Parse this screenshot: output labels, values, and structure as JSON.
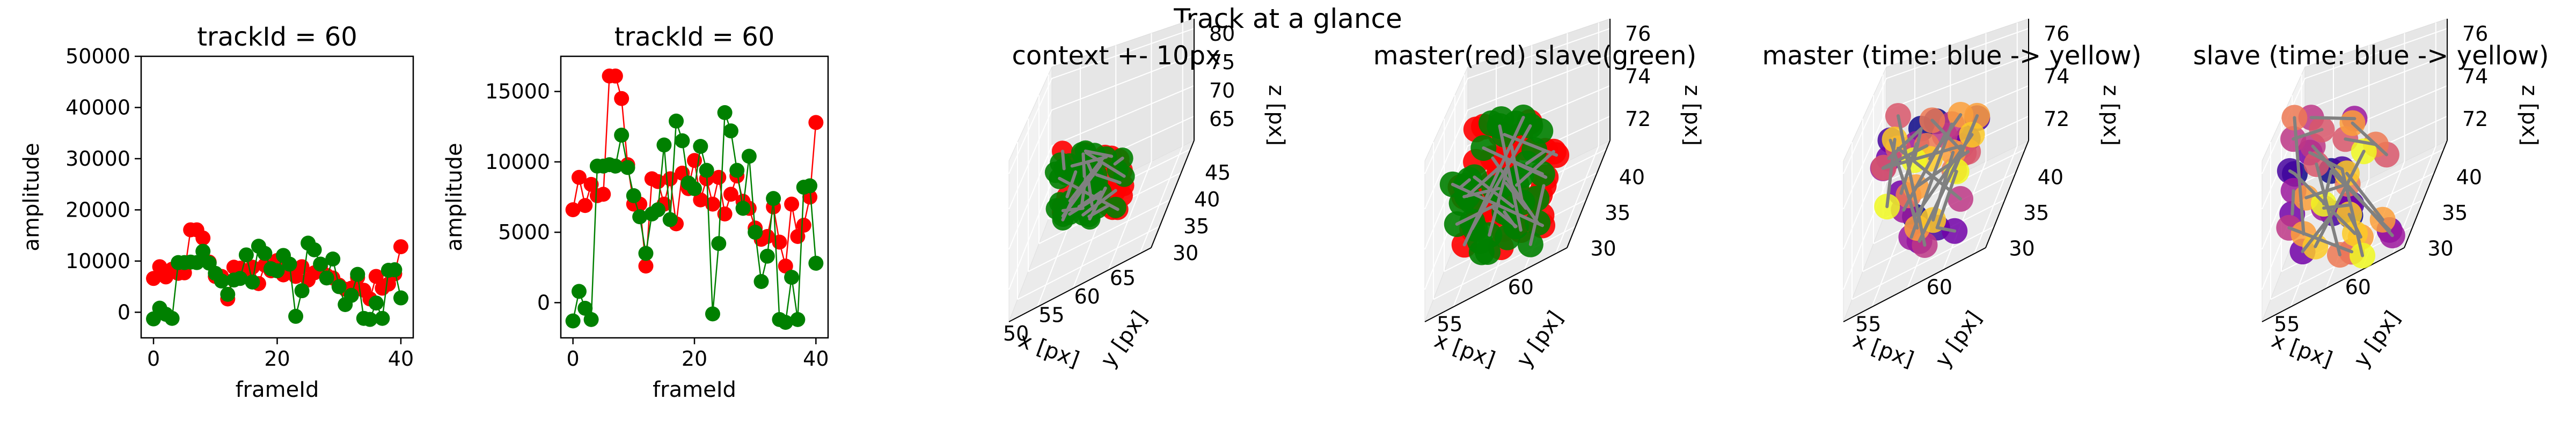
{
  "suptitle": "Track at a glance",
  "colors": {
    "master": "#ff0000",
    "slave": "#008000",
    "link": "#808080",
    "pane_left": "#f2f2f2",
    "pane_right": "#e6e6e6",
    "pane_floor": "#ebebeb"
  },
  "chart_data": [
    {
      "type": "scatter",
      "title": "trackId = 60",
      "xlabel": "frameId",
      "ylabel": "amplitude",
      "xlim": [
        -2,
        42
      ],
      "ylim": [
        -5000,
        50000
      ],
      "xticks": [
        0,
        20,
        40
      ],
      "yticks": [
        0,
        10000,
        20000,
        30000,
        40000,
        50000
      ],
      "ytick_labels": [
        "0",
        "10000",
        "20000",
        "30000",
        "40000",
        "50000"
      ],
      "series": [
        {
          "color": "#ff0000",
          "values": [
            [
              0,
              6600
            ],
            [
              1,
              8900
            ],
            [
              2,
              6900
            ],
            [
              3,
              8400
            ],
            [
              4,
              7600
            ],
            [
              5,
              7700
            ],
            [
              6,
              16100
            ],
            [
              7,
              16100
            ],
            [
              8,
              14500
            ],
            [
              9,
              9800
            ],
            [
              10,
              7000
            ],
            [
              11,
              7000
            ],
            [
              12,
              2600
            ],
            [
              13,
              8800
            ],
            [
              14,
              8600
            ],
            [
              15,
              7000
            ],
            [
              16,
              8800
            ],
            [
              17,
              5600
            ],
            [
              18,
              9200
            ],
            [
              19,
              8100
            ],
            [
              20,
              10100
            ],
            [
              21,
              7300
            ],
            [
              22,
              8800
            ],
            [
              23,
              7000
            ],
            [
              24,
              8900
            ],
            [
              25,
              6300
            ],
            [
              26,
              7700
            ],
            [
              27,
              9000
            ],
            [
              28,
              7200
            ],
            [
              29,
              6700
            ],
            [
              30,
              5300
            ],
            [
              31,
              4500
            ],
            [
              32,
              4700
            ],
            [
              33,
              6800
            ],
            [
              34,
              4300
            ],
            [
              35,
              2600
            ],
            [
              36,
              7000
            ],
            [
              37,
              4700
            ],
            [
              38,
              5500
            ],
            [
              39,
              7500
            ],
            [
              40,
              12800
            ]
          ]
        },
        {
          "color": "#008000",
          "values": [
            [
              0,
              -1300
            ],
            [
              1,
              800
            ],
            [
              2,
              -400
            ],
            [
              3,
              -1200
            ],
            [
              4,
              9700
            ],
            [
              5,
              9700
            ],
            [
              6,
              9800
            ],
            [
              7,
              9700
            ],
            [
              8,
              11900
            ],
            [
              9,
              9600
            ],
            [
              10,
              7600
            ],
            [
              11,
              6100
            ],
            [
              12,
              3500
            ],
            [
              13,
              6300
            ],
            [
              14,
              6600
            ],
            [
              15,
              11200
            ],
            [
              16,
              5900
            ],
            [
              17,
              12900
            ],
            [
              18,
              11500
            ],
            [
              19,
              8500
            ],
            [
              20,
              8100
            ],
            [
              21,
              11100
            ],
            [
              22,
              9400
            ],
            [
              23,
              -800
            ],
            [
              24,
              4200
            ],
            [
              25,
              13500
            ],
            [
              26,
              12200
            ],
            [
              27,
              9400
            ],
            [
              28,
              6700
            ],
            [
              29,
              10400
            ],
            [
              30,
              5000
            ],
            [
              31,
              1500
            ],
            [
              32,
              3300
            ],
            [
              33,
              7400
            ],
            [
              34,
              -1200
            ],
            [
              35,
              -1400
            ],
            [
              36,
              1800
            ],
            [
              37,
              -1200
            ],
            [
              38,
              8200
            ],
            [
              39,
              8300
            ],
            [
              40,
              2800
            ]
          ]
        }
      ]
    },
    {
      "type": "scatter",
      "title": "trackId = 60",
      "xlabel": "frameId",
      "ylabel": "amplitude",
      "xlim": [
        -2,
        42
      ],
      "ylim": [
        -2500,
        17500
      ],
      "xticks": [
        0,
        20,
        40
      ],
      "yticks": [
        0,
        5000,
        10000,
        15000
      ],
      "ytick_labels": [
        "0",
        "5000",
        "10000",
        "15000"
      ],
      "series": "same as panel 1"
    },
    {
      "type": "scatter3d",
      "title": "context +- 10px",
      "xlabel": "x [px]",
      "ylabel": "y [px]",
      "zlabel": "z [px]",
      "x_ticks": [
        "50",
        "55",
        "60",
        "65"
      ],
      "y_ticks": [
        "30",
        "35",
        "40",
        "45"
      ],
      "z_ticks": [
        "65",
        "70",
        "75",
        "80"
      ]
    },
    {
      "type": "scatter3d",
      "title": "master(red) slave(green)",
      "xlabel": "x [px]",
      "ylabel": "y [px]",
      "zlabel": "z [px]",
      "x_ticks": [
        "55",
        "60"
      ],
      "y_ticks": [
        "30",
        "35",
        "40"
      ],
      "z_ticks": [
        "72",
        "74",
        "76"
      ]
    },
    {
      "type": "scatter3d",
      "title": "master (time: blue -> yellow)",
      "xlabel": "x [px]",
      "ylabel": "y [px]",
      "zlabel": "z [px]",
      "x_ticks": [
        "55",
        "60"
      ],
      "y_ticks": [
        "30",
        "35",
        "40"
      ],
      "z_ticks": [
        "72",
        "74",
        "76"
      ]
    },
    {
      "type": "scatter3d",
      "title": "slave (time: blue -> yellow)",
      "xlabel": "x [px]",
      "ylabel": "y [px]",
      "zlabel": "z [px]",
      "x_ticks": [
        "55",
        "60"
      ],
      "y_ticks": [
        "30",
        "35",
        "40"
      ],
      "z_ticks": [
        "72",
        "74",
        "76"
      ]
    }
  ]
}
